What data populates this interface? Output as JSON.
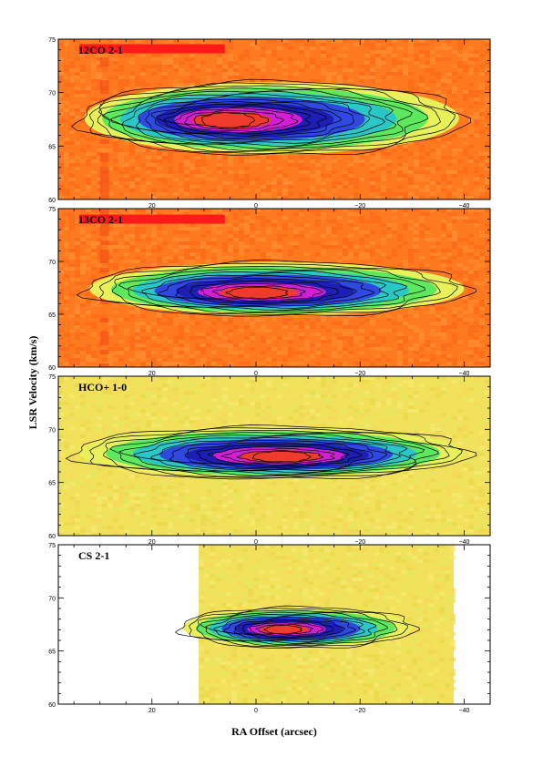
{
  "chart_data": {
    "type": "heatmap",
    "subtype": "position-velocity contour diagram",
    "xlabel": "RA Offset (arcsec)",
    "ylabel": "LSR Velocity (km/s)",
    "xlim": [
      38,
      -45
    ],
    "ylim": [
      60,
      75
    ],
    "x_ticks": [
      20,
      0,
      -20,
      -40
    ],
    "x_tick_labels": [
      "20",
      "0",
      "−20",
      "−40"
    ],
    "y_ticks": [
      60,
      65,
      70,
      75
    ],
    "y_tick_labels": [
      "60",
      "65",
      "70",
      "75"
    ],
    "contours": true,
    "colormap": [
      "#e8f05a",
      "#5ee85e",
      "#2ac7c7",
      "#2f49e0",
      "#1d1fb4",
      "#d21ed4",
      "#ef3b2c"
    ],
    "panels": [
      {
        "label": "12CO 2-1",
        "background": "#ff7a1f",
        "has_bar": true,
        "bar_x": [
          34,
          6
        ],
        "bar_y": 74.1,
        "core": {
          "x": -3,
          "x_half_width": 36,
          "v": 67.6,
          "v_half_width": 3.2
        },
        "peak": {
          "x": 6,
          "v": 67.4
        },
        "contour_levels": 16
      },
      {
        "label": "13CO 2-1",
        "background": "#ff7a1f",
        "has_bar": true,
        "bar_x": [
          34,
          6
        ],
        "bar_y": 74.0,
        "core": {
          "x": -4,
          "x_half_width": 36,
          "v": 67.4,
          "v_half_width": 2.4
        },
        "peak": {
          "x": 0,
          "v": 67.0
        },
        "contour_levels": 12
      },
      {
        "label": "HCO+ 1-0",
        "background": "#f2e15a",
        "has_bar": false,
        "core": {
          "x": -3,
          "x_half_width": 37,
          "v": 67.8,
          "v_half_width": 2.3
        },
        "peak": {
          "x": -5,
          "v": 67.4
        },
        "contour_levels": 14
      },
      {
        "label": "CS 2-1",
        "background": "#f2e15a",
        "has_bar": false,
        "data_x_range": [
          11,
          -38
        ],
        "core": {
          "x": -8,
          "x_half_width": 22,
          "v": 67.2,
          "v_half_width": 1.8
        },
        "peak": {
          "x": -5,
          "v": 67.0
        },
        "contour_levels": 12
      }
    ]
  }
}
